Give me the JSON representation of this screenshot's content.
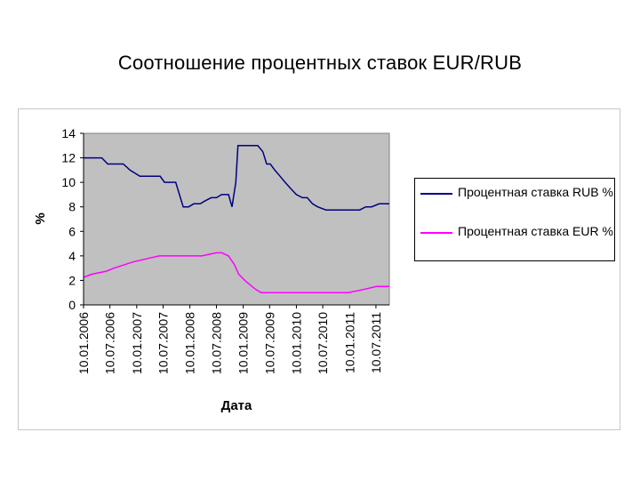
{
  "slide": {
    "title": "Соотношение процентных ставок EUR/RUB"
  },
  "chart_data": {
    "type": "line",
    "title": "",
    "xlabel": "Дата",
    "ylabel": "%",
    "ylim": [
      0,
      14
    ],
    "yticks": [
      0,
      2,
      4,
      6,
      8,
      10,
      12,
      14
    ],
    "xlim": [
      "2006-01-10",
      "2011-10-10"
    ],
    "xticks": [
      "2006-01-10",
      "2006-07-10",
      "2007-01-10",
      "2007-07-10",
      "2008-01-10",
      "2008-07-10",
      "2009-01-10",
      "2009-07-10",
      "2010-01-10",
      "2010-07-10",
      "2011-01-10",
      "2011-07-10"
    ],
    "xtick_labels": [
      "10.01.2006",
      "10.07.2006",
      "10.01.2007",
      "10.07.2007",
      "10.01.2008",
      "10.07.2008",
      "10.01.2009",
      "10.07.2009",
      "10.01.2010",
      "10.07.2010",
      "10.01.2011",
      "10.07.2011"
    ],
    "grid": false,
    "legend_position": "right",
    "plot_background": "#c0c0c0",
    "series": [
      {
        "name": "Процентная ставка RUB %",
        "color": "#000080",
        "x": [
          "2006-01-10",
          "2006-05-15",
          "2006-06-25",
          "2006-10-10",
          "2006-11-25",
          "2007-02-01",
          "2007-05-10",
          "2007-06-20",
          "2007-07-20",
          "2007-10-05",
          "2007-11-25",
          "2008-01-01",
          "2008-02-05",
          "2008-03-20",
          "2008-04-25",
          "2008-06-05",
          "2008-07-10",
          "2008-08-15",
          "2008-10-01",
          "2008-10-25",
          "2008-11-20",
          "2008-12-05",
          "2009-01-10",
          "2009-03-01",
          "2009-04-20",
          "2009-05-25",
          "2009-06-20",
          "2009-07-15",
          "2009-08-15",
          "2009-09-20",
          "2009-10-25",
          "2009-12-01",
          "2010-01-10",
          "2010-02-20",
          "2010-03-25",
          "2010-05-01",
          "2010-06-05",
          "2010-08-01",
          "2010-10-01",
          "2010-12-01",
          "2011-01-01",
          "2011-02-10",
          "2011-03-20",
          "2011-05-01",
          "2011-06-10",
          "2011-08-01",
          "2011-10-10"
        ],
        "values": [
          12,
          12,
          11.5,
          11.5,
          11,
          10.5,
          10.5,
          10.5,
          10,
          10,
          8,
          8,
          8.25,
          8.25,
          8.5,
          8.75,
          8.75,
          9,
          9,
          8,
          10,
          13,
          13,
          13,
          13,
          12.5,
          11.5,
          11.5,
          11,
          10.5,
          10,
          9.5,
          9,
          8.75,
          8.75,
          8.25,
          8,
          7.75,
          7.75,
          7.75,
          7.75,
          7.75,
          7.75,
          8,
          8,
          8.25,
          8.25
        ]
      },
      {
        "name": "Процентная ставка EUR %",
        "color": "#ff00ff",
        "x": [
          "2006-01-10",
          "2006-03-08",
          "2006-06-15",
          "2006-08-09",
          "2006-10-11",
          "2006-12-13",
          "2007-03-14",
          "2007-06-13",
          "2007-09-01",
          "2008-01-01",
          "2008-04-01",
          "2008-07-09",
          "2008-08-15",
          "2008-10-01",
          "2008-10-15",
          "2008-11-12",
          "2008-12-10",
          "2009-01-21",
          "2009-03-11",
          "2009-04-08",
          "2009-05-13",
          "2009-07-01",
          "2010-01-01",
          "2010-07-01",
          "2011-01-01",
          "2011-04-13",
          "2011-07-13",
          "2011-10-10"
        ],
        "values": [
          2.25,
          2.5,
          2.75,
          3,
          3.25,
          3.5,
          3.75,
          4,
          4,
          4,
          4,
          4.25,
          4.25,
          4,
          3.75,
          3.25,
          2.5,
          2,
          1.5,
          1.25,
          1,
          1,
          1,
          1,
          1,
          1.25,
          1.5,
          1.5
        ]
      }
    ]
  }
}
